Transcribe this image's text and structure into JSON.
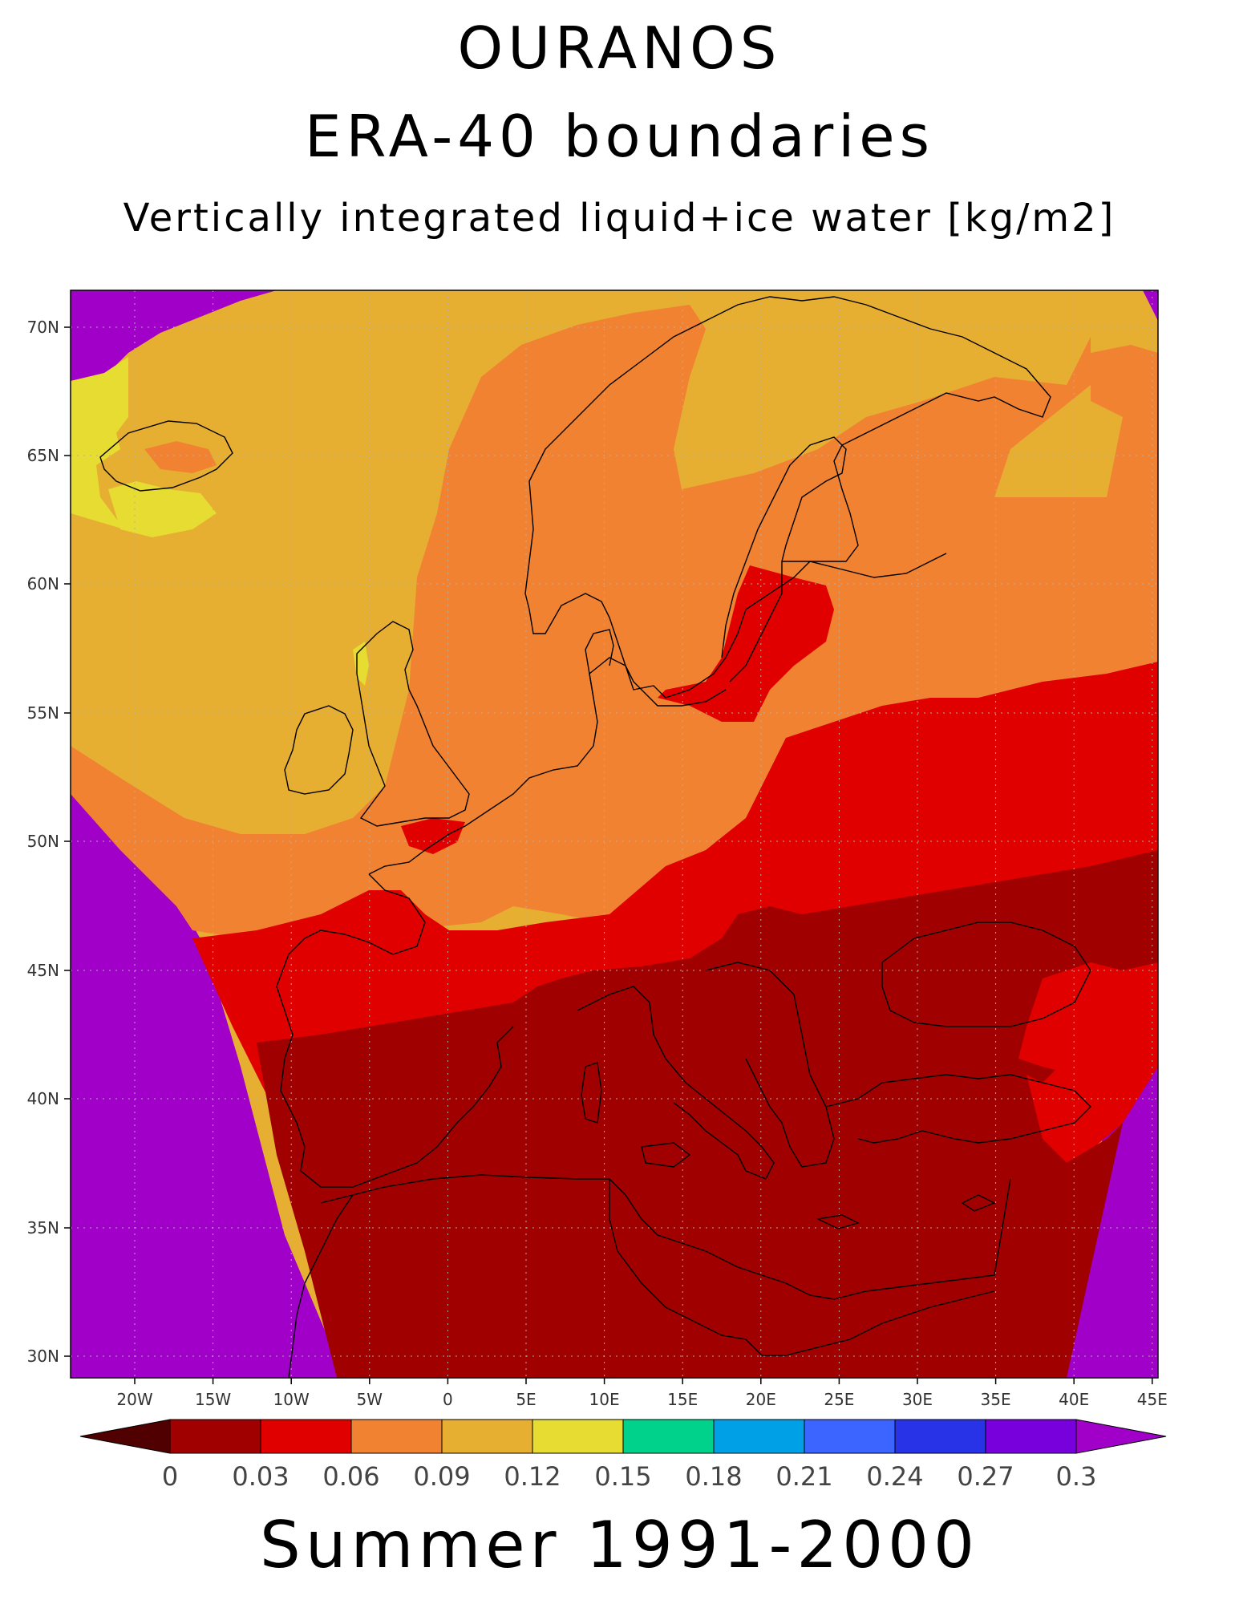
{
  "title": "OURANOS",
  "subtitle": "ERA-40 boundaries",
  "variable": "Vertically integrated liquid+ice water [kg/m2]",
  "period": "Summer 1991-2000",
  "lat_labels": [
    "70N",
    "65N",
    "60N",
    "55N",
    "50N",
    "45N",
    "40N",
    "35N",
    "30N"
  ],
  "lon_labels": [
    "20W",
    "15W",
    "10W",
    "5W",
    "0",
    "5E",
    "10E",
    "15E",
    "20E",
    "25E",
    "30E",
    "35E",
    "40E",
    "45E"
  ],
  "colorbar": {
    "labels": [
      "0",
      "0.03",
      "0.06",
      "0.09",
      "0.12",
      "0.15",
      "0.18",
      "0.21",
      "0.24",
      "0.27",
      "0.3"
    ],
    "colors": [
      "#a00000",
      "#e00000",
      "#f08232",
      "#e6af32",
      "#e6dc32",
      "#00d28c",
      "#00a0e6",
      "#3c64ff",
      "#2832e6",
      "#7800dc"
    ],
    "under_color": "#500000",
    "over_color": "#a000c8"
  },
  "map_colors": {
    "outside_domain": "#a000c8",
    "c0_03": "#a00000",
    "c0_06": "#e00000",
    "c0_09": "#f08232",
    "c0_12": "#e6af32",
    "c0_15": "#e6dc32"
  },
  "icons": [
    "coastline-lines"
  ]
}
